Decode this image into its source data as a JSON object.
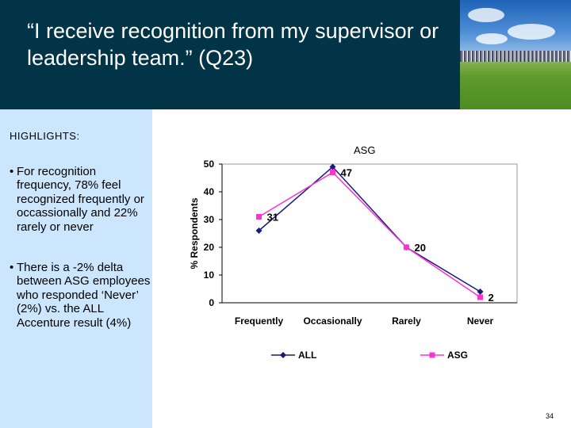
{
  "slide": {
    "title": "“I receive recognition from my supervisor or leadership team.” (Q23)",
    "page_number": "34"
  },
  "highlights": {
    "heading": "HIGHLIGHTS:",
    "bullets": [
      "For recognition frequency, 78% feel recognized frequently or occassionally and 22% rarely or never",
      "There is a -2% delta between ASG employees who responded ‘Never’ (2%) vs. the ALL Accenture result (4%)"
    ]
  },
  "chart_data": {
    "type": "line",
    "title": "ASG",
    "ylabel": "% Respondents",
    "xlabel": "",
    "categories": [
      "Frequently",
      "Occasionally",
      "Rarely",
      "Never"
    ],
    "ylim": [
      0,
      50
    ],
    "yticks": [
      0,
      10,
      20,
      30,
      40,
      50
    ],
    "series": [
      {
        "name": "ALL",
        "values": [
          26,
          49,
          20,
          4
        ],
        "color": "#1a1a7a",
        "marker": "diamond"
      },
      {
        "name": "ASG",
        "values": [
          31,
          47,
          20,
          2
        ],
        "color": "#ff33cc",
        "marker": "square"
      }
    ],
    "data_labels": [
      "31",
      "47",
      "20",
      "2"
    ],
    "legend_position": "bottom",
    "grid": false
  }
}
